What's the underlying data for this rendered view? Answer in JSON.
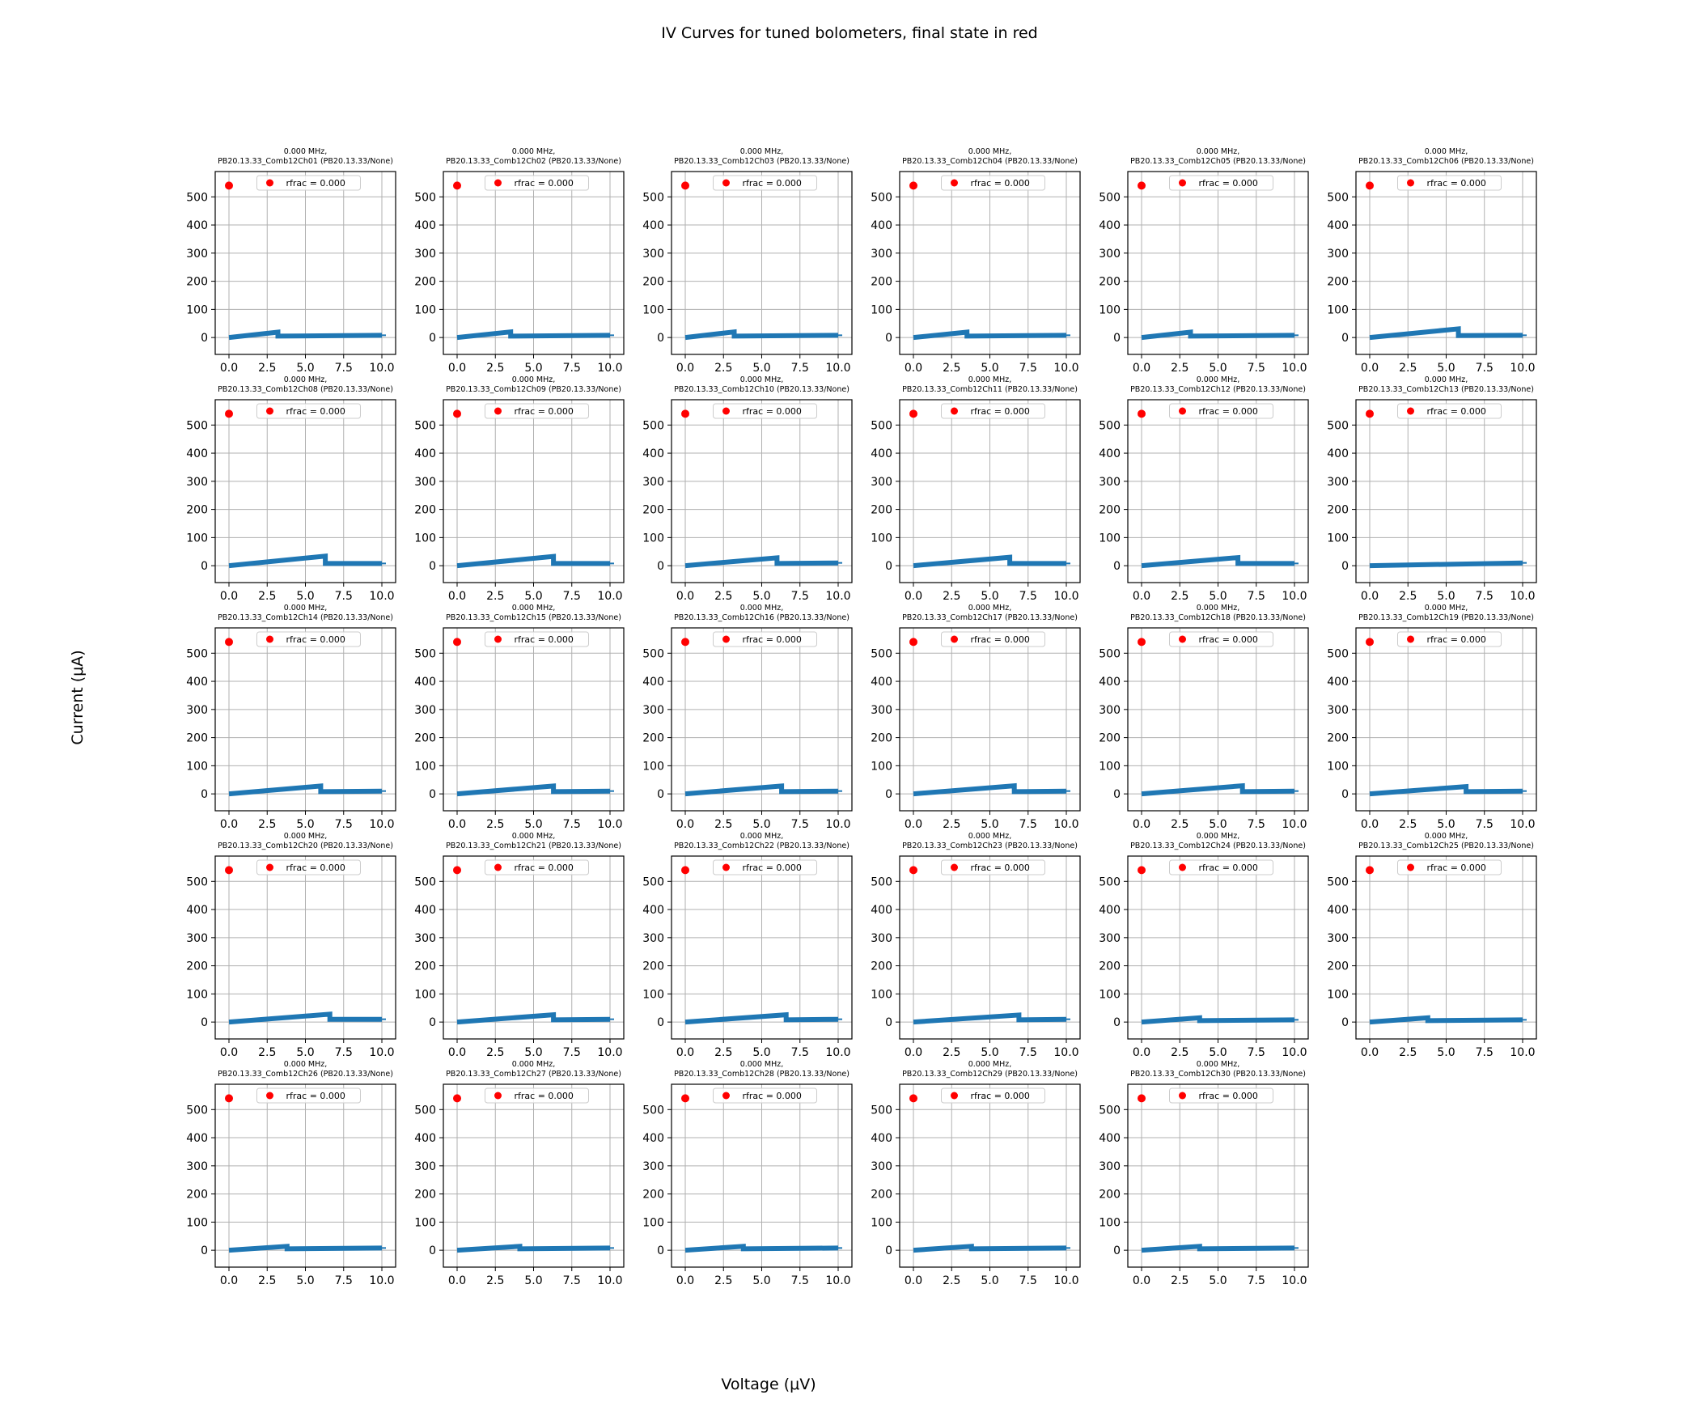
{
  "figure": {
    "title": "IV Curves for tuned bolometers, final state in red",
    "xlabel": "Voltage (μV)",
    "ylabel": "Current (μA)"
  },
  "colors": {
    "curve": "#1f77b4",
    "final_state": "#ff0000",
    "grid": "#b0b0b0",
    "axes": "#000000"
  },
  "chart_data": {
    "type": "scatter",
    "layout_grid": "5 rows x 6 columns (29 panels)",
    "shared": {
      "xlim": [
        -0.9,
        10.9
      ],
      "ylim": [
        -60,
        590
      ],
      "xticks": [
        0.0,
        2.5,
        5.0,
        7.5,
        10.0
      ],
      "xtick_labels": [
        "0.0",
        "2.5",
        "5.0",
        "7.5",
        "10.0"
      ],
      "yticks": [
        0,
        100,
        200,
        300,
        400,
        500
      ],
      "ytick_labels": [
        "0",
        "100",
        "200",
        "300",
        "400",
        "500"
      ],
      "grid": true,
      "legend_position": "upper center",
      "legend_label": "rfrac = 0.000",
      "final_state_point": {
        "x": 0.0,
        "y": 540
      }
    },
    "panels": [
      {
        "title_line1": "0.000 MHz,",
        "title_line2": "PB20.13.33_Comb12Ch01 (PB20.13.33/None)",
        "x": [
          0,
          3.2,
          3.2,
          10
        ],
        "y": [
          0,
          19,
          5,
          8
        ]
      },
      {
        "title_line1": "0.000 MHz,",
        "title_line2": "PB20.13.33_Comb12Ch02 (PB20.13.33/None)",
        "x": [
          0,
          3.5,
          3.5,
          10
        ],
        "y": [
          0,
          20,
          5,
          8
        ]
      },
      {
        "title_line1": "0.000 MHz,",
        "title_line2": "PB20.13.33_Comb12Ch03 (PB20.13.33/None)",
        "x": [
          0,
          3.2,
          3.2,
          10
        ],
        "y": [
          0,
          20,
          5,
          8
        ]
      },
      {
        "title_line1": "0.000 MHz,",
        "title_line2": "PB20.13.33_Comb12Ch04 (PB20.13.33/None)",
        "x": [
          0,
          3.5,
          3.5,
          10
        ],
        "y": [
          0,
          19,
          5,
          8
        ]
      },
      {
        "title_line1": "0.000 MHz,",
        "title_line2": "PB20.13.33_Comb12Ch05 (PB20.13.33/None)",
        "x": [
          0,
          3.2,
          3.2,
          10
        ],
        "y": [
          0,
          19,
          5,
          8
        ]
      },
      {
        "title_line1": "0.000 MHz,",
        "title_line2": "PB20.13.33_Comb12Ch06 (PB20.13.33/None)",
        "x": [
          0,
          5.8,
          5.8,
          10
        ],
        "y": [
          0,
          31,
          7,
          8
        ]
      },
      {
        "title_line1": "0.000 MHz,",
        "title_line2": "PB20.13.33_Comb12Ch08 (PB20.13.33/None)",
        "x": [
          0,
          6.3,
          6.3,
          10
        ],
        "y": [
          0,
          34,
          8,
          8
        ]
      },
      {
        "title_line1": "0.000 MHz,",
        "title_line2": "PB20.13.33_Comb12Ch09 (PB20.13.33/None)",
        "x": [
          0,
          6.3,
          6.3,
          10
        ],
        "y": [
          0,
          33,
          8,
          8
        ]
      },
      {
        "title_line1": "0.000 MHz,",
        "title_line2": "PB20.13.33_Comb12Ch10 (PB20.13.33/None)",
        "x": [
          0,
          6.0,
          6.0,
          10
        ],
        "y": [
          0,
          28,
          8,
          10
        ]
      },
      {
        "title_line1": "0.000 MHz,",
        "title_line2": "PB20.13.33_Comb12Ch11 (PB20.13.33/None)",
        "x": [
          0,
          6.3,
          6.3,
          10
        ],
        "y": [
          0,
          30,
          8,
          8
        ]
      },
      {
        "title_line1": "0.000 MHz,",
        "title_line2": "PB20.13.33_Comb12Ch12 (PB20.13.33/None)",
        "x": [
          0,
          6.3,
          6.3,
          10
        ],
        "y": [
          0,
          29,
          8,
          8
        ]
      },
      {
        "title_line1": "0.000 MHz,",
        "title_line2": "PB20.13.33_Comb12Ch13 (PB20.13.33/None)",
        "x": [
          0,
          10
        ],
        "y": [
          0,
          10
        ]
      },
      {
        "title_line1": "0.000 MHz,",
        "title_line2": "PB20.13.33_Comb12Ch14 (PB20.13.33/None)",
        "x": [
          0,
          6.0,
          6.0,
          10
        ],
        "y": [
          0,
          28,
          8,
          10
        ]
      },
      {
        "title_line1": "0.000 MHz,",
        "title_line2": "PB20.13.33_Comb12Ch15 (PB20.13.33/None)",
        "x": [
          0,
          6.3,
          6.3,
          10
        ],
        "y": [
          0,
          28,
          8,
          10
        ]
      },
      {
        "title_line1": "0.000 MHz,",
        "title_line2": "PB20.13.33_Comb12Ch16 (PB20.13.33/None)",
        "x": [
          0,
          6.3,
          6.3,
          10
        ],
        "y": [
          0,
          28,
          8,
          10
        ]
      },
      {
        "title_line1": "0.000 MHz,",
        "title_line2": "PB20.13.33_Comb12Ch17 (PB20.13.33/None)",
        "x": [
          0,
          6.6,
          6.6,
          10
        ],
        "y": [
          0,
          29,
          8,
          10
        ]
      },
      {
        "title_line1": "0.000 MHz,",
        "title_line2": "PB20.13.33_Comb12Ch18 (PB20.13.33/None)",
        "x": [
          0,
          6.6,
          6.6,
          10
        ],
        "y": [
          0,
          29,
          8,
          10
        ]
      },
      {
        "title_line1": "0.000 MHz,",
        "title_line2": "PB20.13.33_Comb12Ch19 (PB20.13.33/None)",
        "x": [
          0,
          6.3,
          6.3,
          10
        ],
        "y": [
          0,
          26,
          8,
          10
        ]
      },
      {
        "title_line1": "0.000 MHz,",
        "title_line2": "PB20.13.33_Comb12Ch20 (PB20.13.33/None)",
        "x": [
          0,
          6.6,
          6.6,
          10
        ],
        "y": [
          0,
          28,
          10,
          10
        ]
      },
      {
        "title_line1": "0.000 MHz,",
        "title_line2": "PB20.13.33_Comb12Ch21 (PB20.13.33/None)",
        "x": [
          0,
          6.3,
          6.3,
          10
        ],
        "y": [
          0,
          26,
          8,
          10
        ]
      },
      {
        "title_line1": "0.000 MHz,",
        "title_line2": "PB20.13.33_Comb12Ch22 (PB20.13.33/None)",
        "x": [
          0,
          6.6,
          6.6,
          10
        ],
        "y": [
          0,
          26,
          8,
          10
        ]
      },
      {
        "title_line1": "0.000 MHz,",
        "title_line2": "PB20.13.33_Comb12Ch23 (PB20.13.33/None)",
        "x": [
          0,
          6.9,
          6.9,
          10
        ],
        "y": [
          0,
          25,
          8,
          10
        ]
      },
      {
        "title_line1": "0.000 MHz,",
        "title_line2": "PB20.13.33_Comb12Ch24 (PB20.13.33/None)",
        "x": [
          0,
          3.8,
          3.8,
          10
        ],
        "y": [
          0,
          15,
          5,
          8
        ]
      },
      {
        "title_line1": "0.000 MHz,",
        "title_line2": "PB20.13.33_Comb12Ch25 (PB20.13.33/None)",
        "x": [
          0,
          3.8,
          3.8,
          10
        ],
        "y": [
          0,
          15,
          5,
          8
        ]
      },
      {
        "title_line1": "0.000 MHz,",
        "title_line2": "PB20.13.33_Comb12Ch26 (PB20.13.33/None)",
        "x": [
          0,
          3.8,
          3.8,
          10
        ],
        "y": [
          0,
          14,
          5,
          8
        ]
      },
      {
        "title_line1": "0.000 MHz,",
        "title_line2": "PB20.13.33_Comb12Ch27 (PB20.13.33/None)",
        "x": [
          0,
          4.1,
          4.1,
          10
        ],
        "y": [
          0,
          14,
          5,
          8
        ]
      },
      {
        "title_line1": "0.000 MHz,",
        "title_line2": "PB20.13.33_Comb12Ch28 (PB20.13.33/None)",
        "x": [
          0,
          3.8,
          3.8,
          10
        ],
        "y": [
          0,
          14,
          5,
          8
        ]
      },
      {
        "title_line1": "0.000 MHz,",
        "title_line2": "PB20.13.33_Comb12Ch29 (PB20.13.33/None)",
        "x": [
          0,
          3.8,
          3.8,
          10
        ],
        "y": [
          0,
          14,
          5,
          8
        ]
      },
      {
        "title_line1": "0.000 MHz,",
        "title_line2": "PB20.13.33_Comb12Ch30 (PB20.13.33/None)",
        "x": [
          0,
          3.8,
          3.8,
          10
        ],
        "y": [
          0,
          14,
          5,
          8
        ]
      }
    ]
  }
}
